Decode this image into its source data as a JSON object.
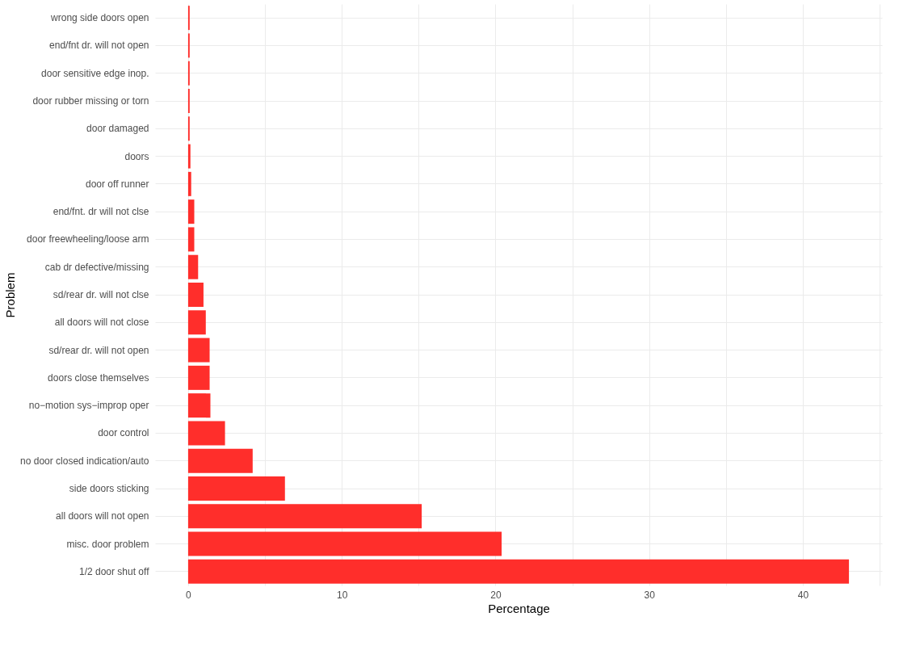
{
  "chart_data": {
    "type": "bar",
    "orientation": "horizontal",
    "xlabel": "Percentage",
    "ylabel": "Problem",
    "categories": [
      "wrong side doors open",
      "end/fnt dr. will not open",
      "door sensitive edge inop.",
      "door rubber missing or torn",
      "door damaged",
      "doors",
      "door off runner",
      "end/fnt. dr will not clse",
      "door freewheeling/loose arm",
      "cab dr defective/missing",
      "sd/rear dr. will not clse",
      "all doors will not close",
      "sd/rear dr. will not open",
      "doors close themselves",
      "no−motion sys−improp oper",
      "door control",
      "no door closed indication/auto",
      "side doors sticking",
      "all doors will not open",
      "misc. door problem",
      "1/2 door shut off"
    ],
    "values": [
      0.1,
      0.1,
      0.1,
      0.1,
      0.1,
      0.15,
      0.2,
      0.4,
      0.4,
      0.65,
      1.0,
      1.15,
      1.4,
      1.4,
      1.45,
      2.4,
      4.2,
      6.3,
      15.2,
      20.4,
      43.0
    ],
    "color": "#ff2e2b",
    "xlim": [
      -2.15,
      45.15
    ],
    "xticks": [
      0,
      {
        "value": 5,
        "label": null
      },
      10,
      {
        "value": 15,
        "label": null
      },
      20,
      {
        "value": 25,
        "label": null
      },
      30,
      {
        "value": 35,
        "label": null
      },
      40,
      {
        "value": 45,
        "label": null
      }
    ],
    "grid": true
  }
}
